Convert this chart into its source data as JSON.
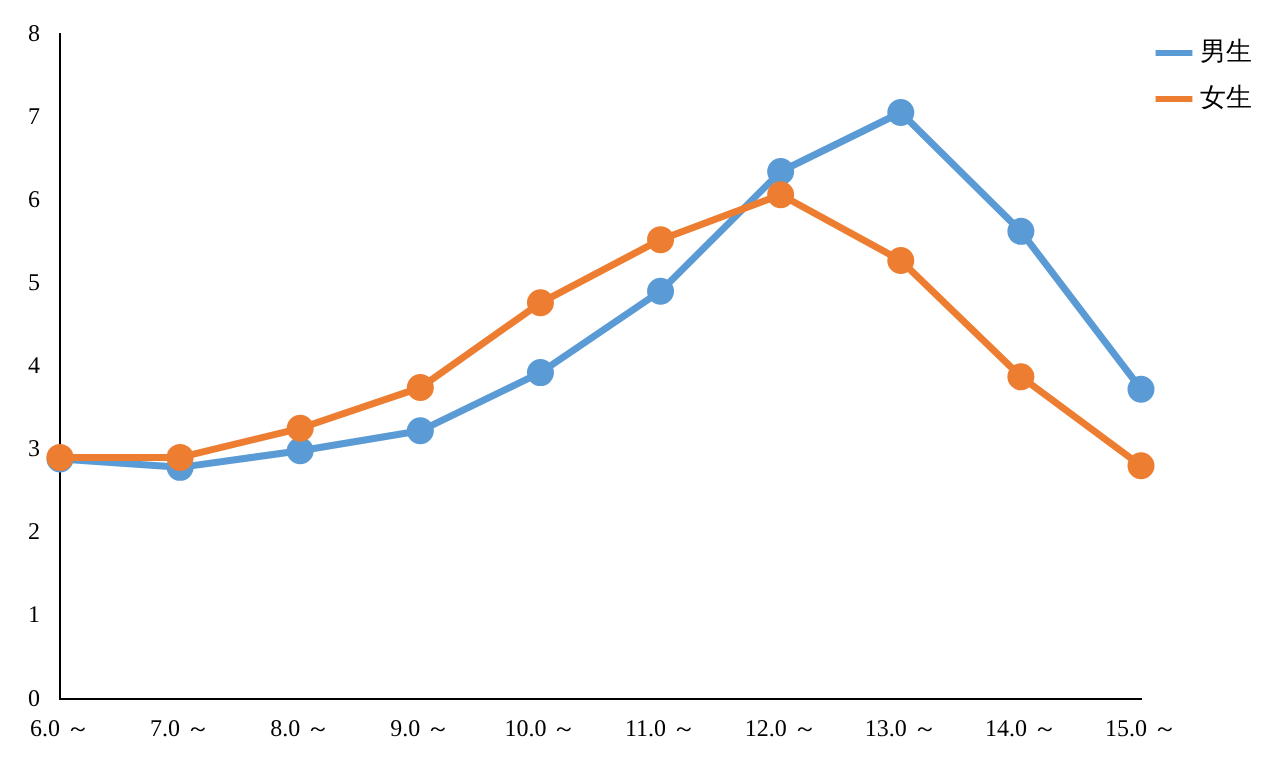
{
  "chart_data": {
    "type": "line",
    "categories": [
      "6.0 ～",
      "7.0 ～",
      "8.0 ～",
      "9.0 ～",
      "10.0 ～",
      "11.0 ～",
      "12.0 ～",
      "13.0 ～",
      "14.0 ～",
      "15.0 ～"
    ],
    "series": [
      {
        "name": "男生",
        "color": "#5b9bd5",
        "values": [
          2.89,
          2.79,
          2.99,
          3.23,
          3.93,
          4.91,
          6.35,
          7.06,
          5.63,
          3.73
        ]
      },
      {
        "name": "女生",
        "color": "#ed7d31",
        "values": [
          2.91,
          2.91,
          3.26,
          3.75,
          4.77,
          5.53,
          6.07,
          5.28,
          3.88,
          2.81
        ]
      }
    ],
    "ylim": [
      0,
      8
    ],
    "yticks": [
      0,
      1,
      2,
      3,
      4,
      5,
      6,
      7,
      8
    ],
    "grid": false,
    "legend": "top right",
    "marker": "circle",
    "line_style": "solid"
  }
}
